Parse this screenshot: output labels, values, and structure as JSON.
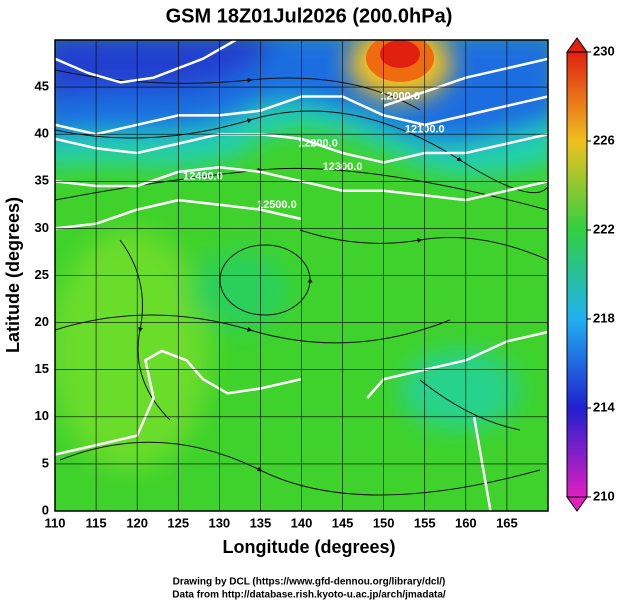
{
  "chart_data": {
    "type": "map",
    "title": "GSM 18Z01Jul2026 (200.0hPa)",
    "xlabel": "Longitude (degrees)",
    "ylabel": "Latitude  (degrees)",
    "xlim": [
      110,
      170
    ],
    "ylim": [
      0,
      50
    ],
    "xticks": [
      110,
      115,
      120,
      125,
      130,
      135,
      140,
      145,
      150,
      155,
      160,
      165
    ],
    "yticks": [
      0,
      5,
      10,
      15,
      20,
      25,
      30,
      35,
      40,
      45
    ],
    "grid": true,
    "colorbar": {
      "lim": [
        210,
        230
      ],
      "ticks": [
        210,
        214,
        218,
        222,
        226,
        230
      ],
      "colors": [
        "#e020c0",
        "#2020d0",
        "#20b0f0",
        "#30d040",
        "#f0c020",
        "#e02010"
      ]
    },
    "contours": [
      {
        "level": 12000,
        "label": "12000.0",
        "label_at": [
          152,
          44
        ],
        "lon": [
          110,
          114,
          118,
          122,
          128,
          132,
          null,
          150,
          155,
          160,
          165,
          170
        ],
        "lat": [
          48,
          46.5,
          45.5,
          46,
          48,
          50,
          null,
          43,
          44.5,
          46,
          47,
          48
        ]
      },
      {
        "level": 12100,
        "label": "12100.0",
        "label_at": [
          155,
          40.5
        ],
        "lon": [
          110,
          115,
          120,
          125,
          130,
          135,
          140,
          145,
          150,
          155,
          160,
          165,
          170
        ],
        "lat": [
          41,
          40,
          41,
          42,
          42,
          42.5,
          44,
          44,
          42,
          41,
          42,
          43,
          44
        ]
      },
      {
        "level": 12200,
        "label": "12200.0",
        "label_at": [
          142,
          39
        ],
        "lon": [
          110,
          115,
          120,
          125,
          130,
          135,
          140,
          145,
          150,
          155,
          160,
          165,
          170
        ],
        "lat": [
          39.5,
          38.5,
          38,
          39,
          40,
          40,
          39.5,
          38,
          37,
          38,
          38,
          39,
          40
        ]
      },
      {
        "level": 12300,
        "label": "12300.0",
        "label_at": [
          145,
          36.5
        ],
        "lon": [
          110,
          115,
          120,
          125,
          130,
          135,
          140,
          145,
          150,
          155,
          160,
          165,
          170
        ],
        "lat": [
          35,
          34.5,
          34.5,
          36,
          36.5,
          36,
          35,
          34,
          34,
          33.5,
          33,
          34,
          35
        ]
      },
      {
        "level": 12400,
        "label": "12400.0",
        "label_at": [
          128,
          35.5
        ],
        "lon": [
          110,
          115,
          120,
          125,
          130,
          135,
          140
        ],
        "lat": [
          30,
          30.5,
          32,
          33,
          32.5,
          32,
          31
        ]
      },
      {
        "level": 12500,
        "label": "12500.0",
        "label_at": [
          137,
          32.5
        ],
        "lon": [
          110,
          115,
          120,
          122,
          121,
          123,
          126,
          128,
          131,
          135,
          140,
          null,
          148,
          150,
          155,
          160,
          165,
          170,
          null,
          161,
          162,
          163
        ],
        "lat": [
          6,
          7,
          8,
          12,
          16,
          17,
          16,
          14,
          12.5,
          13,
          14,
          null,
          12,
          14,
          15,
          16,
          18,
          19,
          null,
          10,
          5,
          0
        ]
      }
    ],
    "credits": [
      "Drawing by DCL (https://www.gfd-dennou.org/library/dcl/)",
      "Data from http://database.rish.kyoto-u.ac.jp/arch/jmadata/"
    ]
  }
}
